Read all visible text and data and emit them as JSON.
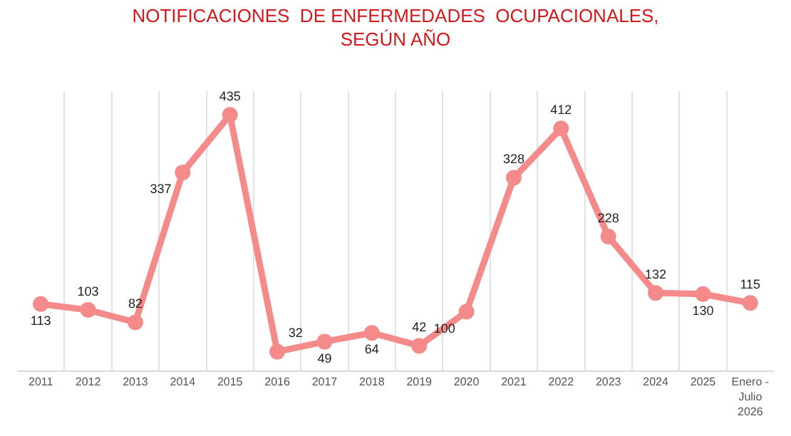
{
  "chart_data": {
    "type": "line",
    "title": "NOTIFICACIONES  DE ENFERMEDADES  OCUPACIONALES,\nSEGÚN AÑO",
    "categories": [
      "2011",
      "2012",
      "2013",
      "2014",
      "2015",
      "2016",
      "2017",
      "2018",
      "2019",
      "2020",
      "2021",
      "2022",
      "2023",
      "2024",
      "2025",
      "Enero -\nJulio\n2026"
    ],
    "series": [
      {
        "color": "#f48a8a",
        "values": [
          113,
          103,
          82,
          337,
          435,
          32,
          49,
          64,
          42,
          100,
          328,
          412,
          228,
          132,
          130,
          115
        ]
      }
    ],
    "data_labels": true,
    "marker": "circle",
    "line_style": "solid",
    "grid": "x",
    "tick_labels": "x"
  }
}
